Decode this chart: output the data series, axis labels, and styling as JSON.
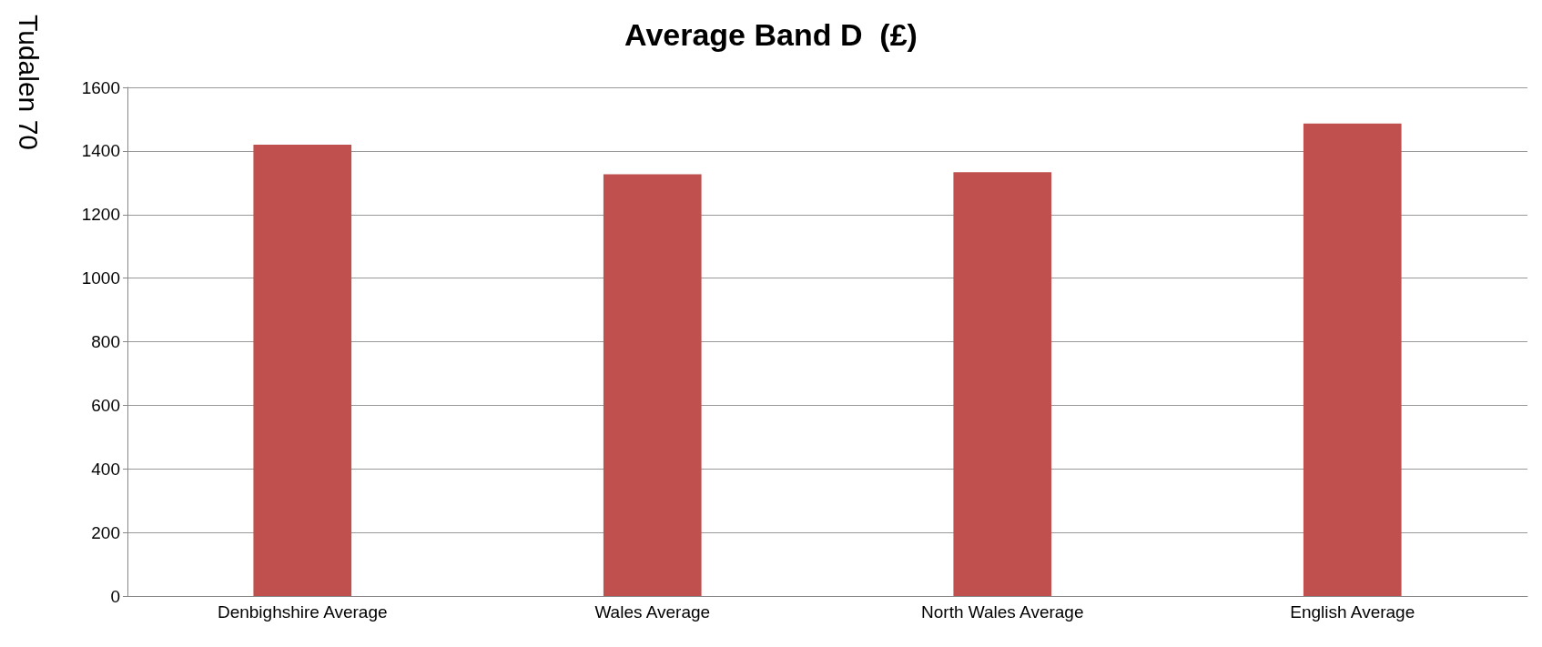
{
  "chart_data": {
    "type": "bar",
    "title": "Average Band D  (£)",
    "categories": [
      "Denbighshire Average",
      "Wales Average",
      "North Wales Average",
      "English Average"
    ],
    "values": [
      1420,
      1327,
      1333,
      1486
    ],
    "color": "#c0504d",
    "ylim": [
      0,
      1600
    ],
    "yticks": [
      0,
      200,
      400,
      600,
      800,
      1000,
      1200,
      1400,
      1600
    ],
    "grid": "y",
    "annotations": [
      "Tudalen 70"
    ]
  }
}
